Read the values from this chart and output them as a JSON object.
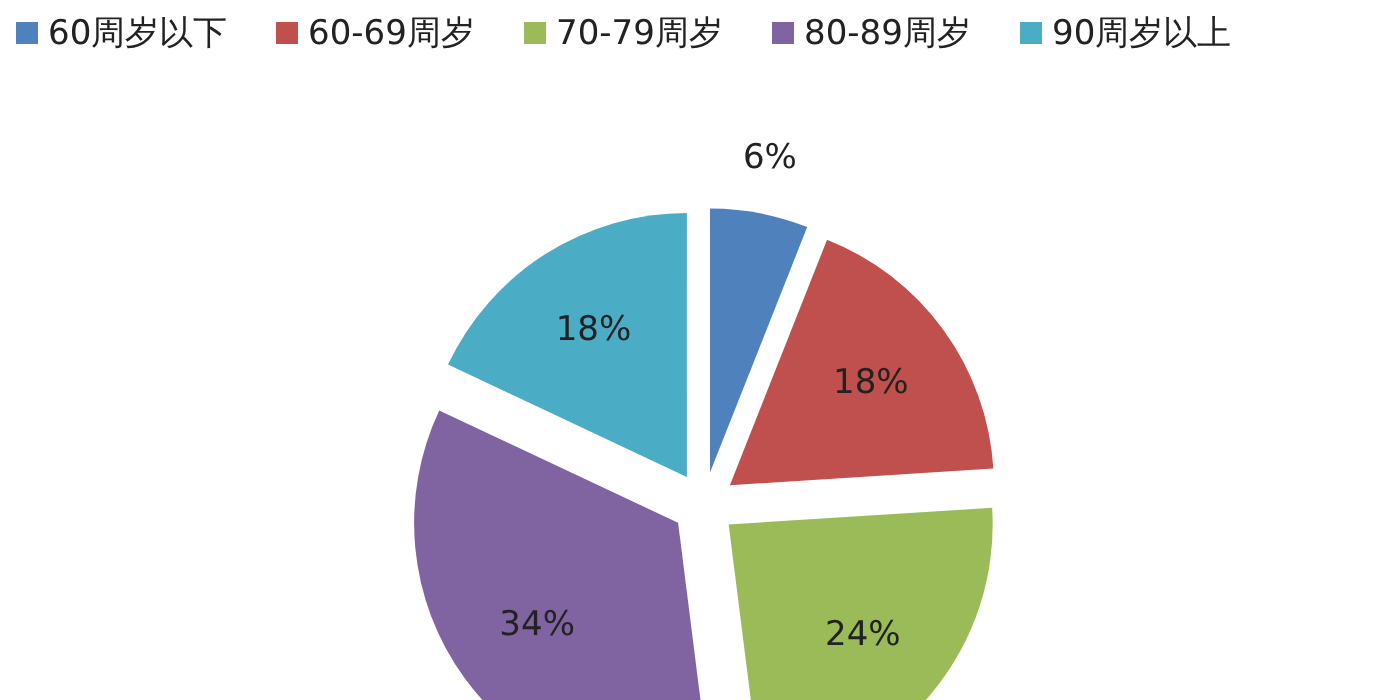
{
  "chart_data": {
    "type": "pie",
    "categories": [
      "60周岁以下",
      "60-69周岁",
      "70-79周岁",
      "80-89周岁",
      "90周岁以上"
    ],
    "values": [
      6,
      18,
      24,
      34,
      18
    ],
    "colors": [
      "#4f81bd",
      "#c0504d",
      "#9bbb59",
      "#8064a2",
      "#4bacc6"
    ],
    "value_labels": [
      "6%",
      "18%",
      "24%",
      "34%",
      "18%"
    ],
    "legend": "top"
  }
}
